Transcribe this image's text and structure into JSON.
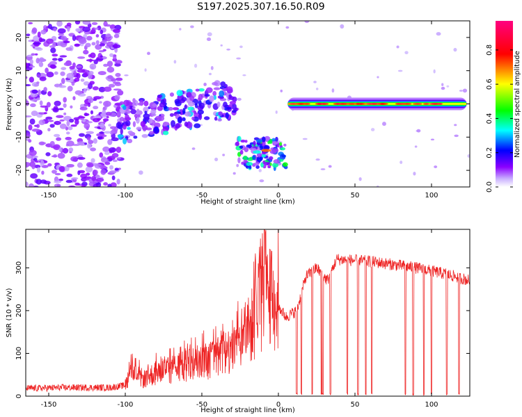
{
  "title": "S197.2025.307.16.50.R09",
  "chart_data": [
    {
      "type": "heatmap",
      "xlabel": "Height of straight line (km)",
      "ylabel": "Frequency (Hz)",
      "xlim": [
        -165,
        125
      ],
      "ylim": [
        -25,
        25
      ],
      "xticks": [
        -150,
        -100,
        -50,
        0,
        50,
        100
      ],
      "yticks": [
        -20,
        -10,
        0,
        10,
        20
      ],
      "colorbar": {
        "label": "Normalized spectral amplitude",
        "range": [
          0,
          0.97
        ],
        "ticks": [
          0.0,
          0.2,
          0.4,
          0.6,
          0.8
        ],
        "tick_labels": [
          "0.0",
          "0.2",
          "0.4",
          "0.6",
          "0.8"
        ],
        "colors": [
          "#ffffff",
          "#8b00ff",
          "#0000ff",
          "#00ffff",
          "#00ff00",
          "#ffff00",
          "#ff0000",
          "#ff0080"
        ]
      },
      "regions": [
        {
          "name": "noise",
          "x": [
            -165,
            -100
          ],
          "freq": [
            -25,
            25
          ],
          "amplitude": 0.1
        },
        {
          "name": "rising-track",
          "x": [
            -105,
            -27
          ],
          "freq_start": -6,
          "freq_end": 4,
          "amplitude": 0.3
        },
        {
          "name": "dip-track",
          "x": [
            -27,
            5
          ],
          "freq_center": -15,
          "amplitude": 0.6
        },
        {
          "name": "zero-track",
          "x": [
            6,
            123
          ],
          "freq_center": 0,
          "amplitude": 0.95
        }
      ]
    },
    {
      "type": "line",
      "xlabel": "Height of straight line (km)",
      "ylabel": "SNR (10 * v/v)",
      "xlim": [
        -165,
        125
      ],
      "ylim": [
        0,
        390
      ],
      "xticks": [
        -150,
        -100,
        -50,
        0,
        50,
        100
      ],
      "yticks": [
        0,
        100,
        200,
        300
      ],
      "color": "#ee2222",
      "envelope": [
        {
          "x": -165,
          "snr": 18
        },
        {
          "x": -140,
          "snr": 20
        },
        {
          "x": -110,
          "snr": 20
        },
        {
          "x": -100,
          "snr": 25
        },
        {
          "x": -96,
          "snr": 55
        },
        {
          "x": -88,
          "snr": 40
        },
        {
          "x": -80,
          "snr": 55
        },
        {
          "x": -60,
          "snr": 70
        },
        {
          "x": -40,
          "snr": 90
        },
        {
          "x": -25,
          "snr": 120
        },
        {
          "x": -15,
          "snr": 180
        },
        {
          "x": -8,
          "snr": 240
        },
        {
          "x": -3,
          "snr": 225
        },
        {
          "x": 5,
          "snr": 185
        },
        {
          "x": 12,
          "snr": 200
        },
        {
          "x": 18,
          "snr": 280
        },
        {
          "x": 25,
          "snr": 300
        },
        {
          "x": 32,
          "snr": 270
        },
        {
          "x": 38,
          "snr": 320
        },
        {
          "x": 60,
          "snr": 315
        },
        {
          "x": 90,
          "snr": 300
        },
        {
          "x": 110,
          "snr": 285
        },
        {
          "x": 125,
          "snr": 270
        }
      ],
      "dropouts": [
        12,
        15,
        22,
        28,
        29,
        34,
        45,
        52,
        57,
        61,
        83,
        88,
        95,
        100,
        110,
        118
      ]
    }
  ]
}
